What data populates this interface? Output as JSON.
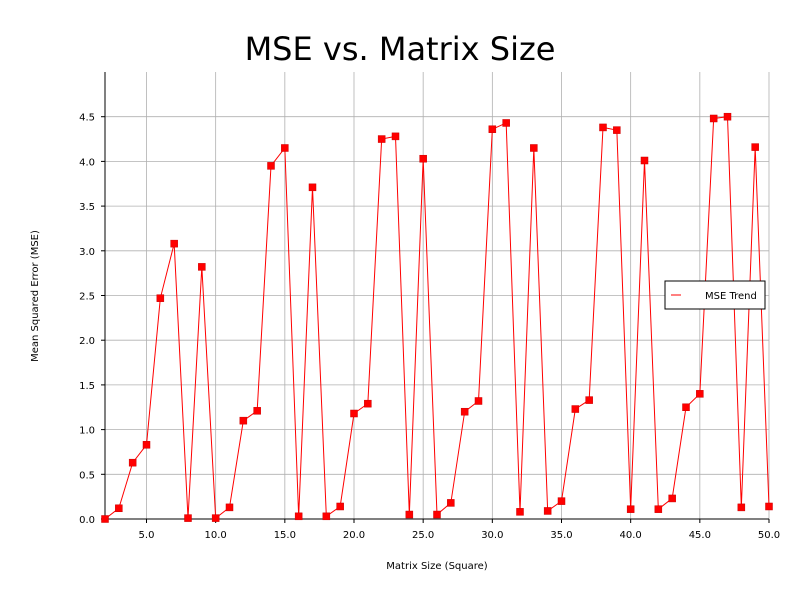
{
  "chart_data": {
    "type": "line",
    "title": "MSE vs. Matrix Size",
    "xlabel": "Matrix Size (Square)",
    "ylabel": "Mean Squared Error (MSE)",
    "xlim": [
      2,
      50
    ],
    "ylim": [
      0,
      5
    ],
    "xticks": [
      5,
      10,
      15,
      20,
      25,
      30,
      35,
      40,
      45,
      50
    ],
    "xtick_labels": [
      "5.0",
      "10.0",
      "15.0",
      "20.0",
      "25.0",
      "30.0",
      "35.0",
      "40.0",
      "45.0",
      "50.0"
    ],
    "yticks": [
      0,
      0.5,
      1,
      1.5,
      2,
      2.5,
      3,
      3.5,
      4,
      4.5
    ],
    "ytick_labels": [
      "0.0",
      "0.5",
      "1.0",
      "1.5",
      "2.0",
      "2.5",
      "3.0",
      "3.5",
      "4.0",
      "4.5"
    ],
    "grid": true,
    "legend": {
      "position": "right",
      "entries": [
        "MSE Trend"
      ]
    },
    "series": [
      {
        "name": "MSE Trend",
        "color": "#ff0000",
        "x": [
          2,
          3,
          4,
          5,
          6,
          7,
          8,
          9,
          10,
          11,
          12,
          13,
          14,
          15,
          16,
          17,
          18,
          19,
          20,
          21,
          22,
          23,
          24,
          25,
          26,
          27,
          28,
          29,
          30,
          31,
          32,
          33,
          34,
          35,
          36,
          37,
          38,
          39,
          40,
          41,
          42,
          43,
          44,
          45,
          46,
          47,
          48,
          49,
          50
        ],
        "y": [
          0.0,
          0.12,
          0.63,
          0.83,
          2.47,
          3.08,
          0.01,
          2.82,
          0.01,
          0.13,
          1.1,
          1.21,
          3.95,
          4.15,
          0.03,
          3.71,
          0.03,
          0.14,
          1.18,
          1.29,
          4.25,
          4.28,
          0.05,
          4.03,
          0.05,
          0.18,
          1.2,
          1.32,
          4.36,
          4.43,
          0.08,
          4.15,
          0.09,
          0.2,
          1.23,
          1.33,
          4.38,
          4.35,
          0.11,
          4.01,
          0.11,
          0.23,
          1.25,
          1.4,
          4.48,
          4.5,
          0.13,
          4.16,
          0.14
        ]
      }
    ]
  }
}
